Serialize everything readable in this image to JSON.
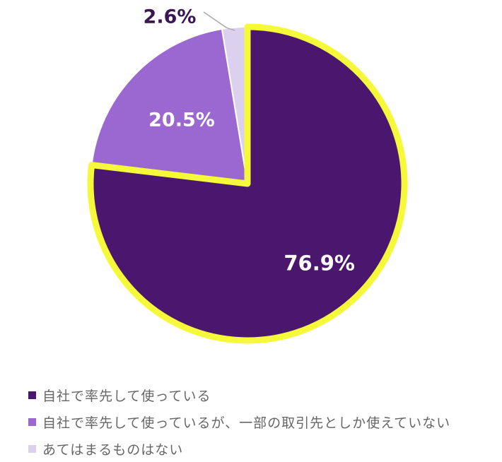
{
  "chart_data": {
    "type": "pie",
    "categories": [
      "自社で率先して使っている",
      "自社で率先して使っているが、一部の取引先としか使えていない",
      "あてはまるものはない"
    ],
    "values": [
      76.9,
      20.5,
      2.6
    ],
    "data_labels": [
      "76.9%",
      "20.5%",
      "2.6%"
    ],
    "colors": [
      "#4b166e",
      "#9b68d1",
      "#dcd0ef"
    ],
    "highlight_color": "#f6f93a",
    "highlighted_slice": 0,
    "legend_position": "bottom-left"
  }
}
